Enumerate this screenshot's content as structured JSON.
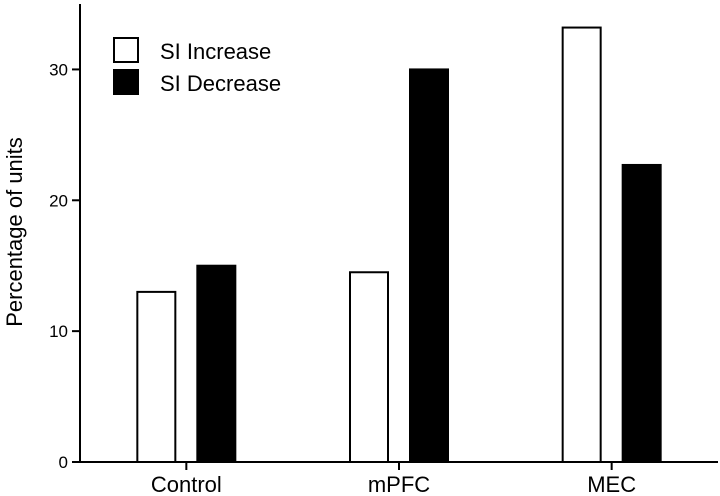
{
  "chart_data": {
    "type": "bar",
    "categories": [
      "Control",
      "mPFC",
      "MEC"
    ],
    "series": [
      {
        "name": "SI Increase",
        "values": [
          13.0,
          14.5,
          33.2
        ],
        "color": "#ffffff"
      },
      {
        "name": "SI Decrease",
        "values": [
          15.0,
          30.0,
          22.7
        ],
        "color": "#000000"
      }
    ],
    "ylabel": "Percentage of units",
    "xlabel": "",
    "ylim": [
      0,
      35
    ],
    "yticks": [
      0,
      10,
      20,
      30
    ],
    "grid": false,
    "legend_position": "top-left"
  }
}
